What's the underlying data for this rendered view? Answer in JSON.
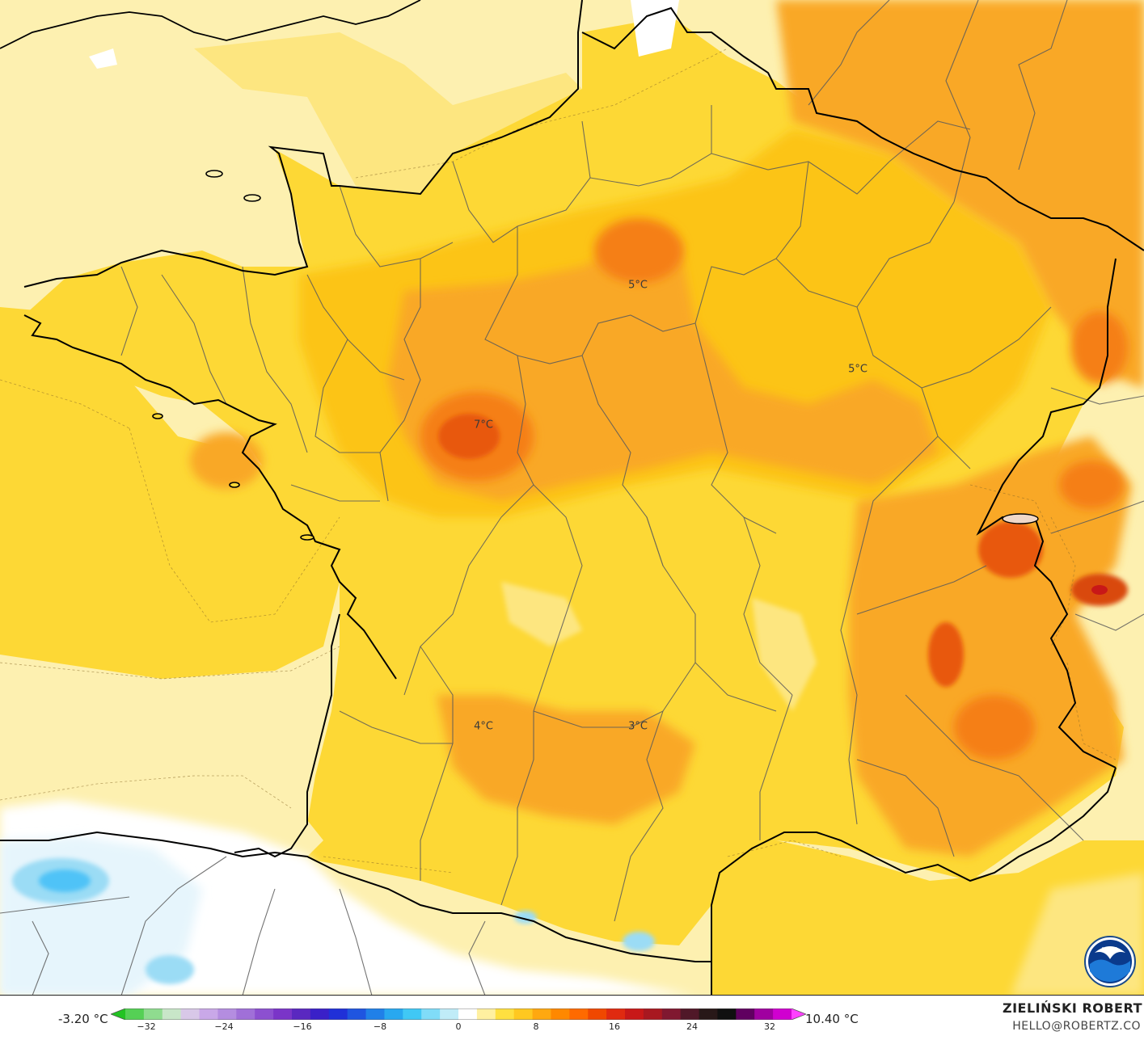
{
  "map": {
    "region": "France",
    "colors": {
      "sea_pale": "#fdf0b0",
      "yellow": "#fdd835",
      "light_orange": "#fcc419",
      "orange": "#f9a825",
      "dark_orange": "#f57f17",
      "red_orange": "#e8590c",
      "red": "#d9480f",
      "pale_blue": "#e6f5fc",
      "light_blue": "#9bdcf5",
      "blue": "#4fc3f7",
      "borders": "#555555",
      "coast": "#000000"
    },
    "labels": [
      {
        "text": "5°C"
      },
      {
        "text": "5°C"
      },
      {
        "text": "7°C"
      },
      {
        "text": "4°C"
      },
      {
        "text": "3°C"
      }
    ]
  },
  "legend": {
    "min_label": "-3.20 °C",
    "max_label": "10.40 °C",
    "ticks": [
      "−32",
      "−24",
      "−16",
      "−8",
      "0",
      "8",
      "16",
      "24",
      "32"
    ],
    "colors": [
      "#22c322",
      "#55d055",
      "#8fdc8f",
      "#c8e6c8",
      "#d8c8e8",
      "#c9a8e8",
      "#b48de0",
      "#a070d8",
      "#8c50d0",
      "#7a35c8",
      "#5a28c0",
      "#3a20c8",
      "#2030d8",
      "#1f55e0",
      "#2080e8",
      "#28a8f0",
      "#40c8f5",
      "#80dcf8",
      "#c0ecf8",
      "#ffffff",
      "#fff0a0",
      "#ffe040",
      "#ffc820",
      "#ffa810",
      "#ff8800",
      "#ff6a00",
      "#f04800",
      "#e02a10",
      "#c81818",
      "#a81820",
      "#801830",
      "#501828",
      "#281818",
      "#101010",
      "#600060",
      "#a000a0",
      "#d000d0",
      "#ff40ff"
    ]
  },
  "credit": {
    "name": "ZIELIŃSKI ROBERT",
    "email": "HELLO@ROBERTZ.CO"
  },
  "logo": {
    "text": "NOAA"
  }
}
